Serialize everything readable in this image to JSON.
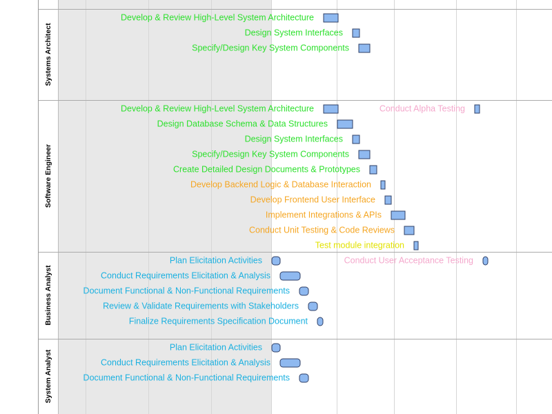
{
  "lanes": [
    {
      "name": "Systems Architect",
      "tasks": [
        {
          "label": "Develop & Review High-Level System Architecture",
          "color": "#2ee02e"
        },
        {
          "label": "Design System Interfaces",
          "color": "#2ee02e"
        },
        {
          "label": "Specify/Design Key System Components",
          "color": "#2ee02e"
        }
      ]
    },
    {
      "name": "Software Engineer",
      "tasks": [
        {
          "label": "Develop & Review High-Level System Architecture",
          "color": "#2ee02e"
        },
        {
          "label": "Conduct Alpha Testing",
          "color": "#f4a8cc"
        },
        {
          "label": "Design Database Schema & Data Structures",
          "color": "#2ee02e"
        },
        {
          "label": "Design System Interfaces",
          "color": "#2ee02e"
        },
        {
          "label": "Specify/Design Key System Components",
          "color": "#2ee02e"
        },
        {
          "label": "Create Detailed Design Documents & Prototypes",
          "color": "#2ee02e"
        },
        {
          "label": "Develop Backend Logic & Database Interaction",
          "color": "#f5a623"
        },
        {
          "label": "Develop Frontend User Interface",
          "color": "#f5a623"
        },
        {
          "label": "Implement Integrations & APIs",
          "color": "#f5a623"
        },
        {
          "label": "Conduct Unit Testing & Code Reviews",
          "color": "#f5a623"
        },
        {
          "label": "Test module integration",
          "color": "#e2e200"
        }
      ]
    },
    {
      "name": "Business Analyst",
      "tasks": [
        {
          "label": "Plan Elicitation Activities",
          "color": "#1ab0e0"
        },
        {
          "label": "Conduct User Acceptance Testing",
          "color": "#f4a8cc"
        },
        {
          "label": "Conduct Requirements Elicitation & Analysis",
          "color": "#1ab0e0"
        },
        {
          "label": "Document Functional & Non-Functional Requirements",
          "color": "#1ab0e0"
        },
        {
          "label": "Review & Validate Requirements with Stakeholders",
          "color": "#1ab0e0"
        },
        {
          "label": "Finalize Requirements Specification Document",
          "color": "#1ab0e0"
        }
      ]
    },
    {
      "name": "System Analyst",
      "tasks": [
        {
          "label": "Plan Elicitation Activities",
          "color": "#1ab0e0"
        },
        {
          "label": "Conduct Requirements Elicitation & Analysis",
          "color": "#1ab0e0"
        },
        {
          "label": "Document Functional & Non-Functional Requirements",
          "color": "#1ab0e0"
        }
      ]
    }
  ]
}
